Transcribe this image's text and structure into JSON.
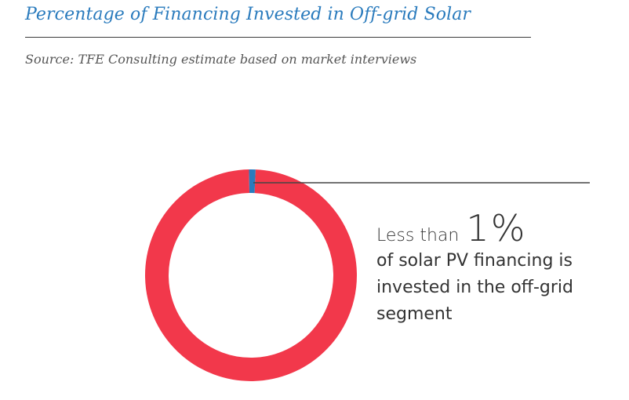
{
  "header": {
    "title": "Percentage of Financing Invested in Off-grid Solar",
    "source": "Source: TFE Consulting estimate based on market interviews"
  },
  "annotation": {
    "lead": "Less than",
    "value": "1%",
    "text": "of solar PV financing is invested in the off-grid segment"
  },
  "colors": {
    "title": "#2a7bbd",
    "remainder": "#f2384b",
    "highlight": "#2a7bbd",
    "leader_line": "#444444"
  },
  "chart_data": {
    "type": "pie",
    "donut": true,
    "slices": [
      {
        "label": "Off-grid segment",
        "value": 1,
        "color": "#2a7bbd"
      },
      {
        "label": "",
        "value": 99,
        "color": "#f2384b"
      }
    ]
  }
}
